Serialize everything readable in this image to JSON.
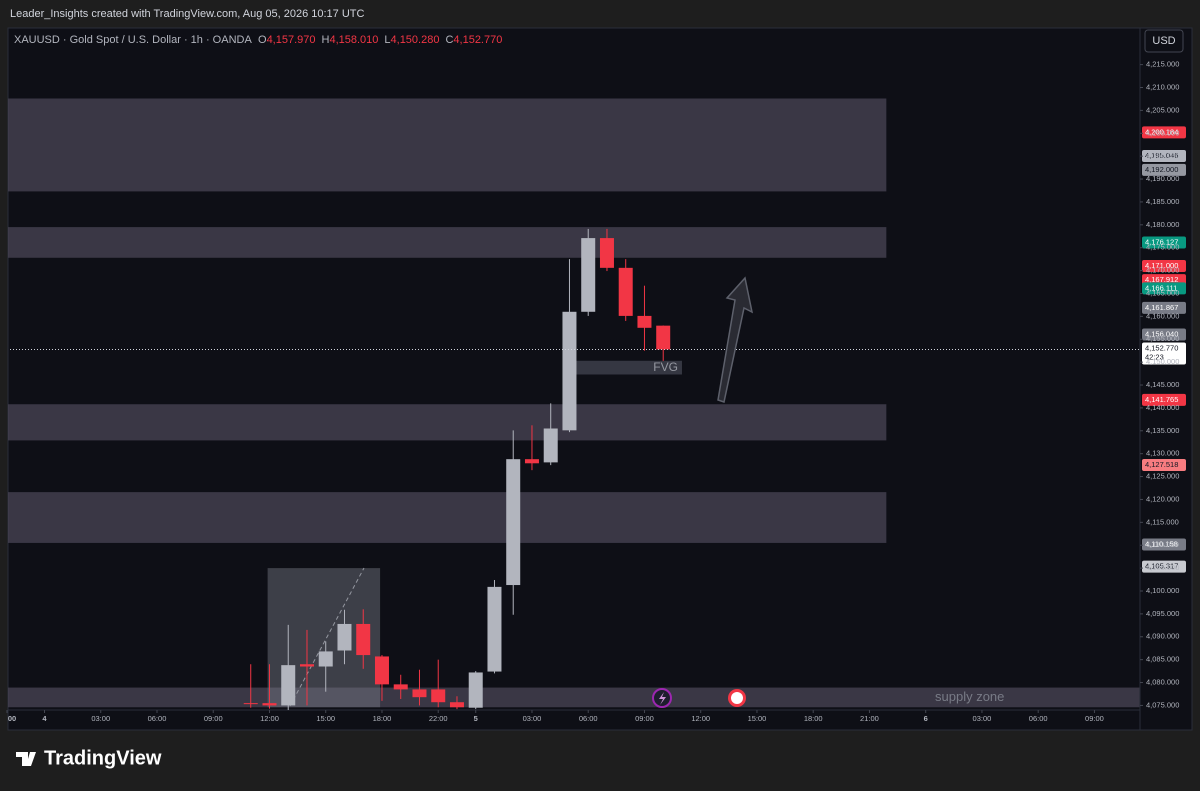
{
  "header": {
    "caption": "Leader_Insights created with TradingView.com, Aug 05, 2026 10:17 UTC"
  },
  "chart_data": {
    "type": "candlestick",
    "symbol": "XAUUSD · Gold Spot / U.S. Dollar · 1h · OANDA",
    "ohlc_legend": [
      {
        "key": "O",
        "label": "4,157.970"
      },
      {
        "key": "H",
        "label": "4,158.010"
      },
      {
        "key": "L",
        "label": "4,150.280"
      },
      {
        "key": "C",
        "label": "4,152.770"
      }
    ],
    "currency": "USD",
    "up_color": "#b2b5be",
    "down_color": "#f23645",
    "x": [
      13,
      14,
      15,
      16,
      17,
      18,
      19,
      20,
      21,
      22,
      23,
      24,
      25,
      26,
      27,
      28,
      29,
      30,
      31,
      32,
      33,
      34,
      35
    ],
    "open": [
      4075.5,
      4075.5,
      4075,
      4084,
      4083.5,
      4087,
      4092.8,
      4085.7,
      4079.6,
      4078.5,
      4078.5,
      4075.7,
      4074.5,
      4082.4,
      4101.3,
      4128.8,
      4128.1,
      4135.1,
      4161,
      4177.1,
      4170.6,
      4160.1,
      4157.97
    ],
    "high": [
      4084,
      4084,
      4092.6,
      4091.5,
      4089,
      4095.9,
      4096,
      4086,
      4081.7,
      4082.8,
      4085,
      4077,
      4082.5,
      4102.4,
      4135.1,
      4136.2,
      4141,
      4172.5,
      4179.1,
      4179.1,
      4172.5,
      4166.7,
      4158.01
    ],
    "low": [
      4074.5,
      4074.3,
      4074,
      4075,
      4078,
      4084,
      4083,
      4076,
      4076.4,
      4075,
      4074.6,
      4074.2,
      4074.2,
      4082,
      4094.8,
      4126.4,
      4127.5,
      4134.7,
      4160.1,
      4169.9,
      4159,
      4152.5,
      4150.28
    ],
    "close": [
      4075.3,
      4075,
      4083.8,
      4083.5,
      4086.8,
      4092.8,
      4086,
      4079.6,
      4078.5,
      4076.8,
      4075.7,
      4074.6,
      4082.2,
      4100.9,
      4128.8,
      4127.9,
      4135.5,
      4161,
      4177.1,
      4170.6,
      4160.1,
      4157.5,
      4152.77
    ],
    "xlim": [
      0,
      60.43
    ],
    "xticks": [
      {
        "value": 0,
        "label": "00"
      },
      {
        "value": 2,
        "label": "4"
      },
      {
        "value": 5,
        "label": "03:00"
      },
      {
        "value": 8,
        "label": "06:00"
      },
      {
        "value": 11,
        "label": "09:00"
      },
      {
        "value": 14,
        "label": "12:00"
      },
      {
        "value": 17,
        "label": "15:00"
      },
      {
        "value": 20,
        "label": "18:00"
      },
      {
        "value": 23,
        "label": "22:00"
      },
      {
        "value": 25,
        "label": "5"
      },
      {
        "value": 28,
        "label": "03:00"
      },
      {
        "value": 31,
        "label": "06:00"
      },
      {
        "value": 34,
        "label": "09:00"
      },
      {
        "value": 37,
        "label": "12:00"
      },
      {
        "value": 40,
        "label": "15:00"
      },
      {
        "value": 43,
        "label": "18:00"
      },
      {
        "value": 46,
        "label": "21:00"
      },
      {
        "value": 49,
        "label": "6"
      },
      {
        "value": 52,
        "label": "03:00"
      },
      {
        "value": 55,
        "label": "06:00"
      },
      {
        "value": 58,
        "label": "09:00"
      }
    ],
    "ylim": [
      4074,
      4223
    ],
    "yticks": [
      {
        "value": 4075,
        "label": "4,075.000"
      },
      {
        "value": 4080,
        "label": "4,080.000"
      },
      {
        "value": 4085,
        "label": "4,085.000"
      },
      {
        "value": 4090,
        "label": "4,090.000"
      },
      {
        "value": 4095,
        "label": "4,095.000"
      },
      {
        "value": 4100,
        "label": "4,100.000"
      },
      {
        "value": 4105,
        "label": "4,105.000"
      },
      {
        "value": 4110,
        "label": "4,110.000"
      },
      {
        "value": 4115,
        "label": "4,115.000"
      },
      {
        "value": 4120,
        "label": "4,120.000"
      },
      {
        "value": 4125,
        "label": "4,125.000"
      },
      {
        "value": 4130,
        "label": "4,130.000"
      },
      {
        "value": 4135,
        "label": "4,135.000"
      },
      {
        "value": 4140,
        "label": "4,140.000"
      },
      {
        "value": 4145,
        "label": "4,145.000"
      },
      {
        "value": 4150,
        "label": "4,150.000"
      },
      {
        "value": 4155,
        "label": "4,155.000"
      },
      {
        "value": 4160,
        "label": "4,160.000"
      },
      {
        "value": 4165,
        "label": "4,165.000"
      },
      {
        "value": 4170,
        "label": "4,170.000"
      },
      {
        "value": 4175,
        "label": "4,175.000"
      },
      {
        "value": 4180,
        "label": "4,180.000"
      },
      {
        "value": 4185,
        "label": "4,185.000"
      },
      {
        "value": 4190,
        "label": "4,190.000"
      },
      {
        "value": 4195,
        "label": "4,195.000"
      },
      {
        "value": 4200,
        "label": "4,200.000"
      },
      {
        "value": 4205,
        "label": "4,205.000"
      },
      {
        "value": 4210,
        "label": "4,210.000"
      },
      {
        "value": 4215,
        "label": "4,215.000"
      }
    ],
    "grid": false,
    "zones": [
      {
        "x0": 0,
        "x1": 46.9,
        "top": 4207.6,
        "bottom": 4187.3
      },
      {
        "x0": 0,
        "x1": 46.9,
        "top": 4179.5,
        "bottom": 4172.8
      },
      {
        "x0": 0,
        "x1": 46.9,
        "top": 4140.8,
        "bottom": 4132.9
      },
      {
        "x0": 0,
        "x1": 46.9,
        "top": 4121.6,
        "bottom": 4110.5
      }
    ],
    "zone_color": "#4a4656",
    "supply_zone": {
      "label": "supply zone",
      "x0": 0,
      "x1": 60.4,
      "top": 4078.9,
      "bottom": 4074.6
    },
    "fvg": {
      "label": "FVG",
      "x0": 30,
      "x1": 36,
      "top": 4150.3,
      "bottom": 4147.3
    },
    "position_box": {
      "x0": 13.9,
      "x1": 19.9,
      "top": 4105,
      "bottom": 4074.6
    },
    "price_badges": [
      {
        "value": 4200.184,
        "label": "4,200.184",
        "color": "#f23645"
      },
      {
        "value": 4195.046,
        "label": "4,195.046",
        "color": "#b2b5be"
      },
      {
        "value": 4192,
        "label": "4,192.000",
        "color": "#9598a1"
      },
      {
        "value": 4176.127,
        "label": "4,176.127",
        "color": "#089981"
      },
      {
        "value": 4171,
        "label": "4,171.000",
        "color": "#f23645"
      },
      {
        "value": 4167.912,
        "label": "4,167.912",
        "color": "#f23645"
      },
      {
        "value": 4166.111,
        "label": "4,166.111",
        "color": "#089981"
      },
      {
        "value": 4161.867,
        "label": "4,161.867",
        "color": "#787b86"
      },
      {
        "value": 4156.04,
        "label": "4,156.040",
        "color": "#787b86"
      },
      {
        "value": 4141.765,
        "label": "4,141.765",
        "color": "#f23645"
      },
      {
        "value": 4127.518,
        "label": "4,127.518",
        "color": "#f77c80"
      },
      {
        "value": 4110.158,
        "label": "4,110.158",
        "color": "#787b86"
      },
      {
        "value": 4105.317,
        "label": "4,105.317",
        "color": "#c8cad0"
      }
    ],
    "last_price": {
      "value": 4152.77,
      "label": "4,152.770",
      "countdown": "42:23"
    }
  },
  "footer": {
    "brand": "TradingView"
  }
}
